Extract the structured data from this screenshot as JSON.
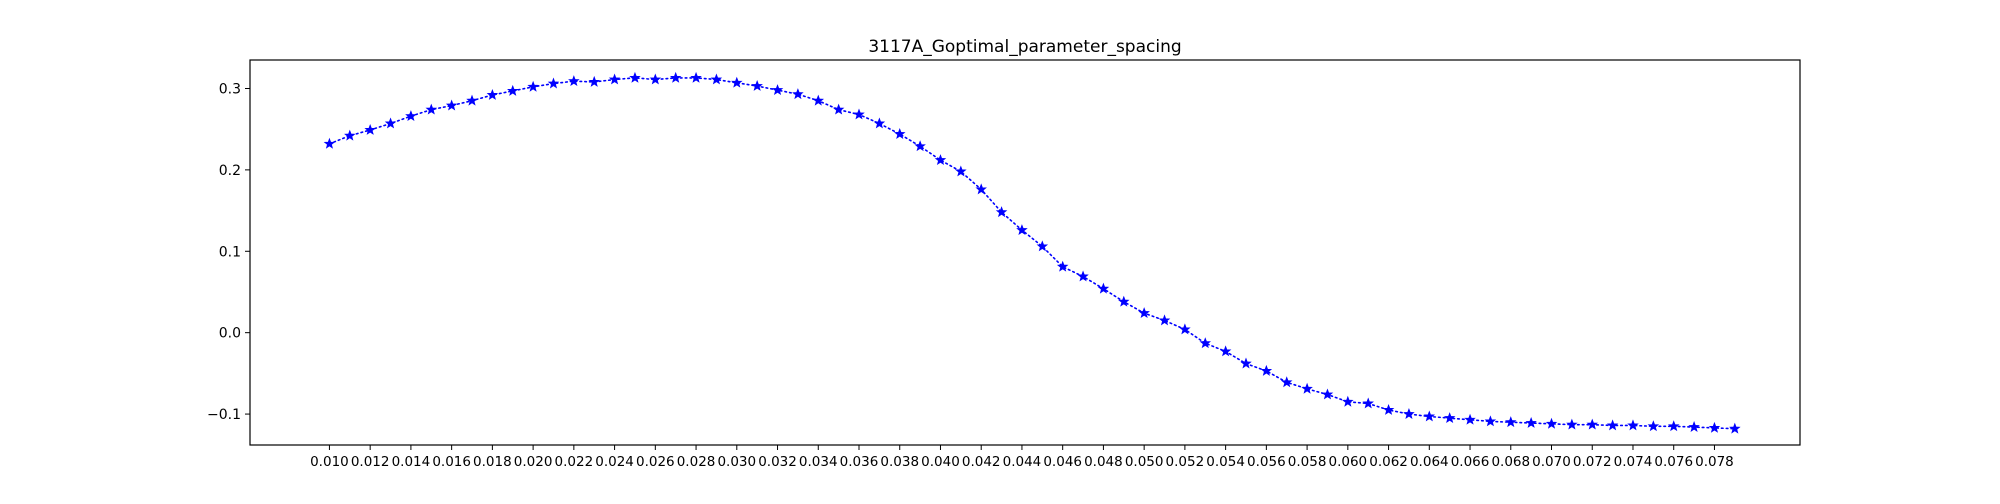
{
  "chart_data": {
    "type": "line",
    "title": "3117A_Goptimal_parameter_spacing",
    "xlabel": "",
    "ylabel": "",
    "xlim": [
      0.0061,
      0.0822
    ],
    "ylim": [
      -0.138,
      0.335
    ],
    "grid": false,
    "line_color": "#0000ff",
    "line_style": "dotted",
    "marker": "star",
    "x_ticks": [
      0.01,
      0.012,
      0.014,
      0.016,
      0.018,
      0.02,
      0.022,
      0.024,
      0.026,
      0.028,
      0.03,
      0.032,
      0.034,
      0.036,
      0.038,
      0.04,
      0.042,
      0.044,
      0.046,
      0.048,
      0.05,
      0.052,
      0.054,
      0.056,
      0.058,
      0.06,
      0.062,
      0.064,
      0.066,
      0.068,
      0.07,
      0.072,
      0.074,
      0.076,
      0.078
    ],
    "x_tick_labels": [
      "0.010",
      "0.012",
      "0.014",
      "0.016",
      "0.018",
      "0.020",
      "0.022",
      "0.024",
      "0.026",
      "0.028",
      "0.030",
      "0.032",
      "0.034",
      "0.036",
      "0.038",
      "0.040",
      "0.042",
      "0.044",
      "0.046",
      "0.048",
      "0.050",
      "0.052",
      "0.054",
      "0.056",
      "0.058",
      "0.060",
      "0.062",
      "0.064",
      "0.066",
      "0.068",
      "0.070",
      "0.072",
      "0.074",
      "0.076",
      "0.078"
    ],
    "y_ticks": [
      -0.1,
      0.0,
      0.1,
      0.2,
      0.3
    ],
    "y_tick_labels": [
      "−0.1",
      "0.0",
      "0.1",
      "0.2",
      "0.3"
    ],
    "series": [
      {
        "x": [
          0.01,
          0.011,
          0.012,
          0.013,
          0.014,
          0.015,
          0.016,
          0.017,
          0.018,
          0.019,
          0.02,
          0.021,
          0.022,
          0.023,
          0.024,
          0.025,
          0.026,
          0.027,
          0.028,
          0.029,
          0.03,
          0.031,
          0.032,
          0.033,
          0.034,
          0.035,
          0.036,
          0.037,
          0.038,
          0.039,
          0.04,
          0.041,
          0.042,
          0.043,
          0.044,
          0.045,
          0.046,
          0.047,
          0.048,
          0.049,
          0.05,
          0.051,
          0.052,
          0.053,
          0.054,
          0.055,
          0.056,
          0.057,
          0.058,
          0.059,
          0.06,
          0.061,
          0.062,
          0.063,
          0.064,
          0.065,
          0.066,
          0.067,
          0.068,
          0.069,
          0.07,
          0.071,
          0.072,
          0.073,
          0.074,
          0.075,
          0.076,
          0.077,
          0.078,
          0.079
        ],
        "y": [
          0.232,
          0.242,
          0.249,
          0.257,
          0.266,
          0.274,
          0.279,
          0.285,
          0.292,
          0.297,
          0.302,
          0.306,
          0.309,
          0.308,
          0.311,
          0.313,
          0.311,
          0.313,
          0.313,
          0.311,
          0.307,
          0.303,
          0.298,
          0.293,
          0.285,
          0.274,
          0.268,
          0.257,
          0.244,
          0.229,
          0.212,
          0.198,
          0.176,
          0.148,
          0.126,
          0.106,
          0.081,
          0.069,
          0.054,
          0.038,
          0.024,
          0.015,
          0.004,
          -0.013,
          -0.023,
          -0.038,
          -0.047,
          -0.061,
          -0.069,
          -0.076,
          -0.085,
          -0.087,
          -0.095,
          -0.1,
          -0.103,
          -0.105,
          -0.107,
          -0.109,
          -0.11,
          -0.111,
          -0.112,
          -0.113,
          -0.113,
          -0.114,
          -0.114,
          -0.115,
          -0.115,
          -0.116,
          -0.117,
          -0.118
        ]
      }
    ]
  }
}
